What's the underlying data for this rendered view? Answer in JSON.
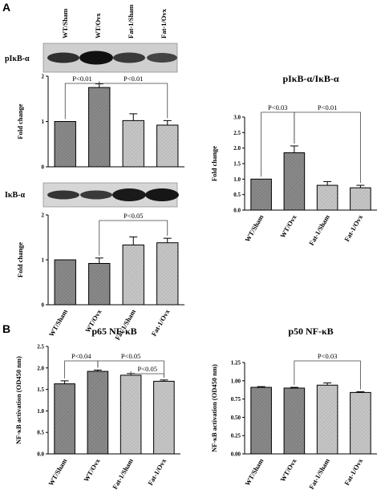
{
  "panel_labels": [
    "A",
    "B"
  ],
  "blots": [
    {
      "label": "pIκB-α",
      "lanes": [
        "WT/Sham",
        "WT/Ovx",
        "Fat-1/Sham",
        "Fat-1/Ovx"
      ]
    },
    {
      "label": "IκB-α"
    }
  ],
  "colors": {
    "dark": "#8a8a8a",
    "light": "#c6c6c6",
    "axis": "#000000"
  },
  "chart_data": [
    {
      "id": "pikb",
      "type": "bar",
      "title": "",
      "ylabel": "Fold change",
      "ylim": [
        0,
        2
      ],
      "yticks": [
        "0",
        "1",
        "2"
      ],
      "categories": [
        "WT/Sham",
        "WT/Ovx",
        "Fat-1/Sham",
        "Fat-1/Ovx"
      ],
      "show_categories": false,
      "values": [
        1.0,
        1.75,
        1.02,
        0.92
      ],
      "errors": [
        0,
        0.08,
        0.15,
        0.1
      ],
      "annotations": [
        {
          "text": "P<0.01",
          "from": 0,
          "to": 1
        },
        {
          "text": "P<0.01",
          "from": 1,
          "to": 3
        }
      ]
    },
    {
      "id": "ikb",
      "type": "bar",
      "title": "",
      "ylabel": "Fold change",
      "ylim": [
        0,
        2
      ],
      "yticks": [
        "0",
        "1",
        "2"
      ],
      "categories": [
        "WT/Sham",
        "WT/Ovx",
        "Fat-1/Sham",
        "Fat-1/Ovx"
      ],
      "show_categories": true,
      "values": [
        1.0,
        0.92,
        1.33,
        1.38
      ],
      "errors": [
        0,
        0.12,
        0.18,
        0.1
      ],
      "annotations": [
        {
          "text": "P<0.05",
          "from": 1,
          "to": 3
        }
      ]
    },
    {
      "id": "ratio",
      "type": "bar",
      "title": "pIκB-α/IκB-α",
      "ylabel": "Fold change",
      "ylim": [
        0,
        3.0
      ],
      "yticks": [
        "0.0",
        "0.5",
        "1.0",
        "1.5",
        "2.0",
        "2.5",
        "3.0"
      ],
      "categories": [
        "WT/Sham",
        "WT/Ovx",
        "Fat-1/Sham",
        "Fat-1/Ovx"
      ],
      "show_categories": true,
      "values": [
        1.0,
        1.85,
        0.8,
        0.72
      ],
      "errors": [
        0,
        0.22,
        0.12,
        0.08
      ],
      "annotations": [
        {
          "text": "P<0.03",
          "from": 0,
          "to": 1
        },
        {
          "text": "P<0.01",
          "from": 1,
          "to": 3
        }
      ]
    },
    {
      "id": "p65",
      "type": "bar",
      "title": "p65 NF-κB",
      "ylabel": "NF-κB activation (OD450 nm)",
      "ylim": [
        0,
        2.5
      ],
      "yticks": [
        "0.0",
        "0.5",
        "1.0",
        "1.5",
        "2.0",
        "2.5"
      ],
      "categories": [
        "WT/Sham",
        "WT/Ovx",
        "Fat-1/Sham",
        "Fat-1/Ovx"
      ],
      "show_categories": true,
      "values": [
        1.63,
        1.92,
        1.83,
        1.69
      ],
      "errors": [
        0.07,
        0.03,
        0.04,
        0.03
      ],
      "annotations": [
        {
          "text": "P<0.04",
          "from": 0,
          "to": 1
        },
        {
          "text": "P<0.05",
          "from": 1,
          "to": 3
        },
        {
          "text": "P<0.05",
          "from": 2,
          "to": 3
        }
      ]
    },
    {
      "id": "p50",
      "type": "bar",
      "title": "p50 NF-κB",
      "ylabel": "NF-κB activation (OD450 nm)",
      "ylim": [
        0,
        1.25
      ],
      "yticks": [
        "0.00",
        "0.25",
        "0.50",
        "0.75",
        "1.00",
        "1.25"
      ],
      "categories": [
        "WT/Sham",
        "WT/Ovx",
        "Fat-1/Sham",
        "Fat-1/Ovx"
      ],
      "show_categories": true,
      "values": [
        0.91,
        0.9,
        0.94,
        0.84
      ],
      "errors": [
        0.01,
        0.01,
        0.03,
        0.01
      ],
      "annotations": [
        {
          "text": "P<0.03",
          "from": 1,
          "to": 3
        }
      ]
    }
  ]
}
